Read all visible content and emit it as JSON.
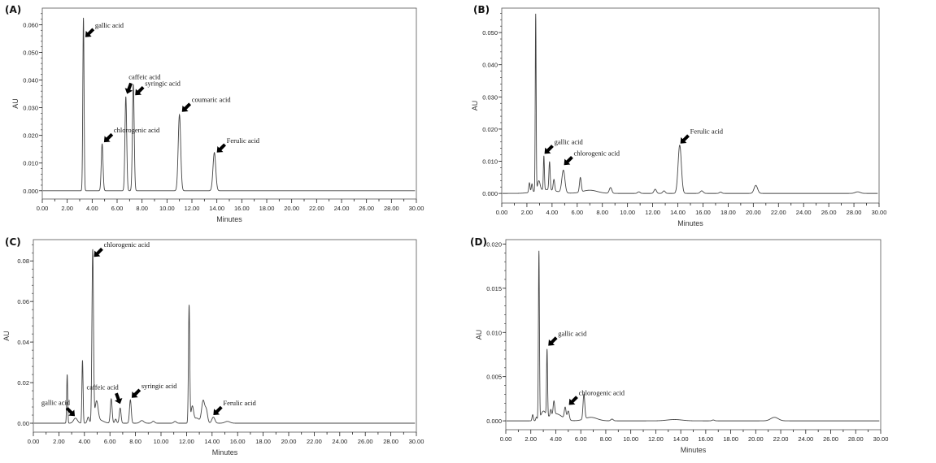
{
  "chart_data": [
    {
      "type": "line",
      "panel_label": "(A)",
      "xlabel": "Minutes",
      "ylabel": "AU",
      "xlim": [
        0,
        30
      ],
      "ylim": [
        -0.003,
        0.066
      ],
      "xticks": [
        "0.00",
        "2.00",
        "4.00",
        "6.00",
        "8.00",
        "10.00",
        "12.00",
        "14.00",
        "16.00",
        "18.00",
        "20.00",
        "22.00",
        "24.00",
        "26.00",
        "28.00",
        "30.00"
      ],
      "yticks": [
        {
          "v": 0,
          "label": "0.000"
        },
        {
          "v": 0.01,
          "label": "0.010"
        },
        {
          "v": 0.02,
          "label": "0.020"
        },
        {
          "v": 0.03,
          "label": "0.030"
        },
        {
          "v": 0.04,
          "label": "0.040"
        },
        {
          "v": 0.05,
          "label": "0.050"
        },
        {
          "v": 0.06,
          "label": "0.060"
        }
      ],
      "peaks": [
        [
          3.3,
          0.0625,
          0.05
        ],
        [
          4.8,
          0.017,
          0.07
        ],
        [
          6.7,
          0.034,
          0.07
        ],
        [
          7.3,
          0.0385,
          0.07
        ],
        [
          11.0,
          0.0275,
          0.1
        ],
        [
          13.8,
          0.0138,
          0.11
        ]
      ],
      "annotations": [
        {
          "text": "gallic acid",
          "x": 3.45,
          "y": 0.0555,
          "side": "right"
        },
        {
          "text": "chlorogenic acid",
          "x": 4.95,
          "y": 0.0175,
          "side": "right"
        },
        {
          "text": "caffeic acid",
          "x": 6.8,
          "y": 0.035,
          "side": "up"
        },
        {
          "text": "syringic acid",
          "x": 7.45,
          "y": 0.0345,
          "side": "right"
        },
        {
          "text": "coumaric acid",
          "x": 11.2,
          "y": 0.0285,
          "side": "right"
        },
        {
          "text": "Ferulic acid",
          "x": 14.0,
          "y": 0.0138,
          "side": "right"
        }
      ]
    },
    {
      "type": "line",
      "panel_label": "(B)",
      "xlabel": "Minutes",
      "ylabel": "AU",
      "xlim": [
        0,
        30
      ],
      "ylim": [
        -0.003,
        0.0576
      ],
      "xticks": [
        "0.00",
        "2.00",
        "4.00",
        "6.00",
        "8.00",
        "10.00",
        "12.00",
        "14.00",
        "16.00",
        "18.00",
        "20.00",
        "22.00",
        "24.00",
        "26.00",
        "28.00",
        "30.00"
      ],
      "yticks": [
        {
          "v": 0,
          "label": "0.000"
        },
        {
          "v": 0.01,
          "label": "0.010"
        },
        {
          "v": 0.02,
          "label": "0.020"
        },
        {
          "v": 0.03,
          "label": "0.030"
        },
        {
          "v": 0.04,
          "label": "0.040"
        },
        {
          "v": 0.05,
          "label": "0.050"
        }
      ],
      "peaks": [
        [
          2.2,
          0.003,
          0.05
        ],
        [
          2.4,
          0.0025,
          0.05
        ],
        [
          2.7,
          0.055,
          0.035
        ],
        [
          2.95,
          0.003,
          0.1
        ],
        [
          3.35,
          0.0105,
          0.04
        ],
        [
          3.8,
          0.0088,
          0.05
        ],
        [
          4.15,
          0.0035,
          0.06
        ],
        [
          4.9,
          0.007,
          0.12
        ],
        [
          3.5,
          0.0012,
          0.8
        ],
        [
          6.25,
          0.0045,
          0.07
        ],
        [
          7.0,
          0.001,
          0.6
        ],
        [
          8.65,
          0.0018,
          0.1
        ],
        [
          10.9,
          0.0005,
          0.1
        ],
        [
          12.2,
          0.0013,
          0.1
        ],
        [
          12.9,
          0.0008,
          0.1
        ],
        [
          14.15,
          0.015,
          0.13
        ],
        [
          15.9,
          0.0008,
          0.12
        ],
        [
          17.4,
          0.0004,
          0.1
        ],
        [
          20.2,
          0.0025,
          0.14
        ],
        [
          28.3,
          0.0005,
          0.2
        ]
      ],
      "annotations": [
        {
          "text": "gallic acid",
          "x": 3.4,
          "y": 0.0123,
          "side": "right"
        },
        {
          "text": "chlorogenic acid",
          "x": 4.95,
          "y": 0.0088,
          "side": "right"
        },
        {
          "text": "Ferulic acid",
          "x": 14.2,
          "y": 0.0155,
          "side": "right"
        }
      ]
    },
    {
      "type": "line",
      "panel_label": "(C)",
      "xlabel": "Minutes",
      "ylabel": "AU",
      "xlim": [
        0,
        30
      ],
      "ylim": [
        -0.0044,
        0.0905
      ],
      "xticks": [
        "0.00",
        "2.00",
        "4.00",
        "6.00",
        "8.00",
        "10.00",
        "12.00",
        "14.00",
        "16.00",
        "18.00",
        "20.00",
        "22.00",
        "24.00",
        "26.00",
        "28.00",
        "30.00"
      ],
      "yticks": [
        {
          "v": 0,
          "label": "0.00"
        },
        {
          "v": 0.02,
          "label": "0.02"
        },
        {
          "v": 0.04,
          "label": "0.04"
        },
        {
          "v": 0.06,
          "label": "0.06"
        },
        {
          "v": 0.08,
          "label": "0.08"
        }
      ],
      "peaks": [
        [
          2.65,
          0.024,
          0.04
        ],
        [
          3.3,
          0.0025,
          0.15
        ],
        [
          3.85,
          0.031,
          0.045
        ],
        [
          4.3,
          0.003,
          0.08
        ],
        [
          4.65,
          0.085,
          0.06
        ],
        [
          4.95,
          0.01,
          0.12
        ],
        [
          5.2,
          0.0015,
          0.3
        ],
        [
          6.1,
          0.012,
          0.07
        ],
        [
          6.45,
          0.002,
          0.07
        ],
        [
          6.8,
          0.0075,
          0.07
        ],
        [
          7.6,
          0.0115,
          0.07
        ],
        [
          8.5,
          0.0013,
          0.15
        ],
        [
          9.4,
          0.001,
          0.1
        ],
        [
          11.1,
          0.0009,
          0.1
        ],
        [
          12.2,
          0.058,
          0.05
        ],
        [
          12.45,
          0.008,
          0.1
        ],
        [
          12.8,
          0.0025,
          0.2
        ],
        [
          13.3,
          0.011,
          0.12
        ],
        [
          13.55,
          0.006,
          0.1
        ],
        [
          14.1,
          0.003,
          0.12
        ],
        [
          15.2,
          0.0009,
          0.2
        ]
      ],
      "annotations": [
        {
          "text": "chlorogenic acid",
          "x": 4.75,
          "y": 0.082,
          "side": "right"
        },
        {
          "text": "gallic acid",
          "x": 3.25,
          "y": 0.0035,
          "side": "left"
        },
        {
          "text": "caffeic acid",
          "x": 6.8,
          "y": 0.0095,
          "side": "upleft"
        },
        {
          "text": "syringic acid",
          "x": 7.7,
          "y": 0.0125,
          "side": "right"
        },
        {
          "text": "Ferulic acid",
          "x": 14.1,
          "y": 0.004,
          "side": "right"
        }
      ]
    },
    {
      "type": "line",
      "panel_label": "(D)",
      "xlabel": "Minutes",
      "ylabel": "AU",
      "xlim": [
        0,
        30
      ],
      "ylim": [
        -0.001,
        0.0205
      ],
      "xticks": [
        "0.00",
        "2.00",
        "4.00",
        "6.00",
        "8.00",
        "10.00",
        "12.00",
        "14.00",
        "16.00",
        "18.00",
        "20.00",
        "22.00",
        "24.00",
        "26.00",
        "28.00",
        "30.00"
      ],
      "yticks": [
        {
          "v": 0,
          "label": "0.000"
        },
        {
          "v": 0.005,
          "label": "0.005"
        },
        {
          "v": 0.01,
          "label": "0.010"
        },
        {
          "v": 0.015,
          "label": "0.015"
        },
        {
          "v": 0.02,
          "label": "0.020"
        }
      ],
      "peaks": [
        [
          2.15,
          0.0007,
          0.05
        ],
        [
          2.45,
          0.0004,
          0.05
        ],
        [
          2.65,
          0.019,
          0.04
        ],
        [
          3.0,
          0.001,
          0.2
        ],
        [
          3.3,
          0.0075,
          0.04
        ],
        [
          3.6,
          0.0007,
          0.05
        ],
        [
          3.85,
          0.0015,
          0.06
        ],
        [
          4.0,
          0.0008,
          0.5
        ],
        [
          4.75,
          0.0013,
          0.07
        ],
        [
          5.0,
          0.001,
          0.08
        ],
        [
          6.25,
          0.0028,
          0.07
        ],
        [
          6.8,
          0.0004,
          0.5
        ],
        [
          8.5,
          0.0002,
          0.1
        ],
        [
          13.5,
          0.00015,
          0.6
        ],
        [
          16.6,
          0.0001,
          0.1
        ],
        [
          21.5,
          0.0004,
          0.3
        ]
      ],
      "annotations": [
        {
          "text": "gallic acid",
          "x": 3.4,
          "y": 0.0085,
          "side": "right"
        },
        {
          "text": "chlorogenic acid",
          "x": 5.05,
          "y": 0.0018,
          "side": "right"
        }
      ]
    }
  ],
  "colors": {
    "trace": "#444444",
    "axis": "#222222",
    "arrow": "#000000"
  }
}
